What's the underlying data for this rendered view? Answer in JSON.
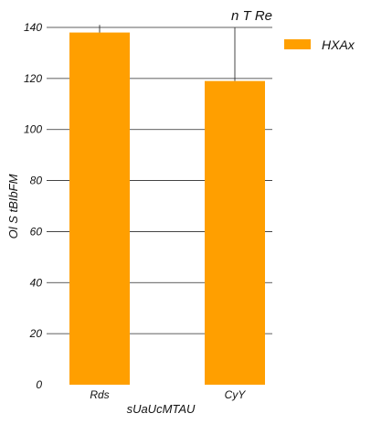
{
  "chart_data": {
    "type": "bar",
    "title": "n T Re",
    "xlabel": "sUaUcMTAU",
    "ylabel": "Ol S tBIbFM",
    "categories": [
      "Rds",
      "CyY"
    ],
    "series": [
      {
        "name": "HXAx",
        "values": [
          138,
          119
        ],
        "error_upper": [
          141,
          140
        ],
        "color": "#ff9f00"
      }
    ],
    "ylim": [
      0,
      140
    ],
    "yticks": [
      0,
      20,
      40,
      60,
      80,
      100,
      120,
      140
    ],
    "grid": true,
    "legend_position": "top-right"
  }
}
